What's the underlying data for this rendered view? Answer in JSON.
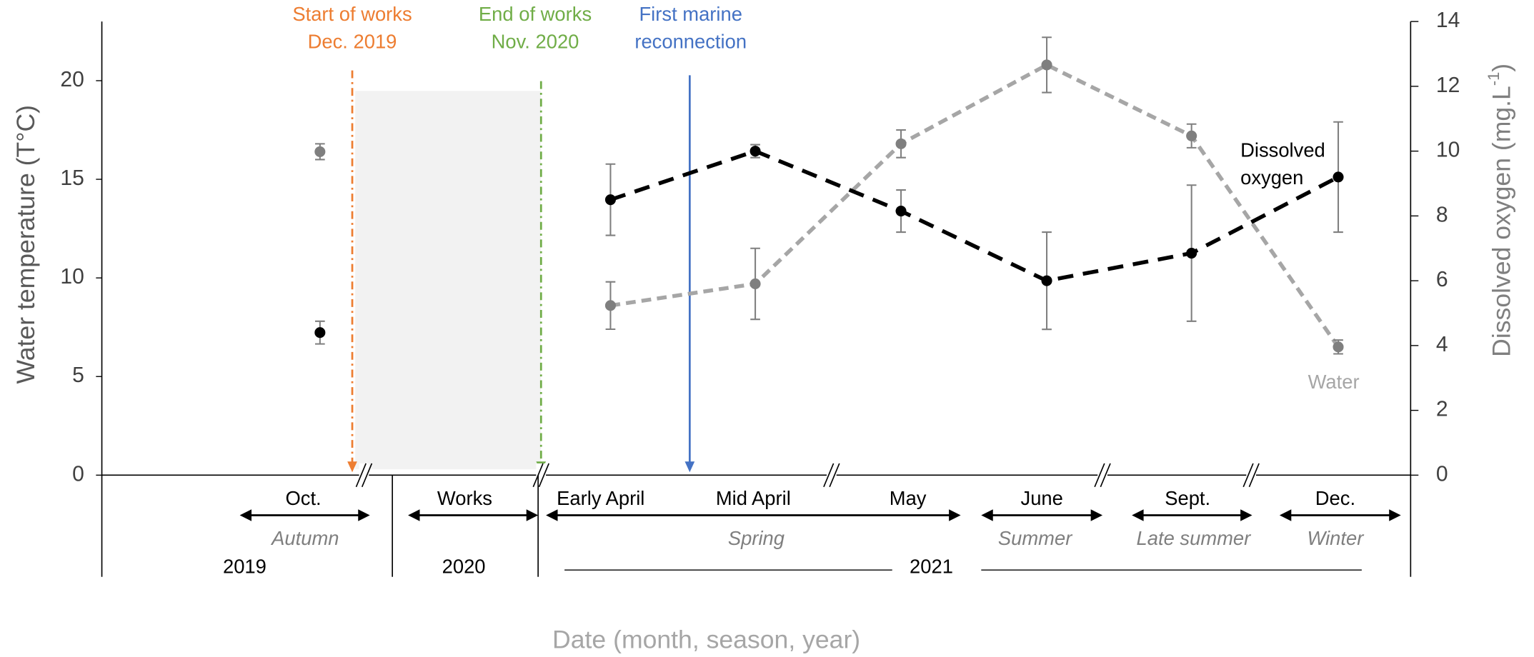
{
  "chart_data": {
    "type": "line",
    "ylabel": "Water temperature (T°C)",
    "y2label": [
      "Dissolved oxygen  (mg.L",
      "-1",
      ")"
    ],
    "xlabel": "Date (month, season, year)",
    "categories": [
      "Oct.",
      "Works",
      "Early April",
      "Mid April",
      "May",
      "June",
      "Sept.",
      "Dec."
    ],
    "ylim": [
      0,
      23
    ],
    "yticks": [
      0,
      5,
      10,
      15,
      20
    ],
    "y2lim": [
      0,
      14
    ],
    "y2ticks": [
      0,
      2,
      4,
      6,
      8,
      10,
      12,
      14
    ],
    "series": [
      {
        "name": "Water",
        "color": "#a6a6a6",
        "marker_color": "#7f7f7f",
        "values": [
          16.4,
          null,
          8.6,
          9.7,
          16.8,
          20.8,
          17.2,
          6.5
        ],
        "errors": [
          0.4,
          null,
          1.2,
          1.8,
          0.7,
          1.4,
          0.6,
          0.35
        ]
      },
      {
        "name_lines": [
          "Dissolved",
          "oxygen"
        ],
        "color": "#000000",
        "marker_color": "#000000",
        "axis": "y2",
        "values": [
          4.4,
          null,
          8.5,
          10.0,
          8.15,
          6.0,
          6.85,
          9.2
        ],
        "errors": [
          0.35,
          null,
          1.1,
          0.2,
          0.65,
          1.5,
          2.1,
          1.7
        ]
      }
    ],
    "seasons": [
      "Autumn",
      "Spring",
      "Summer",
      "Late summer",
      "Winter"
    ],
    "years": [
      "2019",
      "2020",
      "2021"
    ],
    "annotations": [
      {
        "lines": [
          "Start of works",
          "Dec. 2019"
        ],
        "color": "#ed7d31"
      },
      {
        "lines": [
          "End of works",
          "Nov. 2020"
        ],
        "color": "#70ad47"
      },
      {
        "lines": [
          "First marine",
          "reconnection"
        ],
        "color": "#4472c4"
      }
    ]
  }
}
